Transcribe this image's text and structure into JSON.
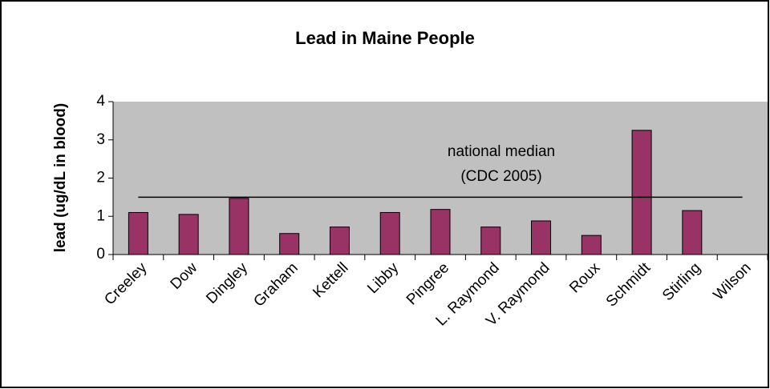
{
  "chart_data": {
    "type": "bar",
    "title": "Lead in Maine People",
    "y_label": "lead (ug/dL in blood)",
    "categories": [
      "Creeley",
      "Dow",
      "Dingley",
      "Graham",
      "Kettell",
      "Libby",
      "Pingree",
      "L. Raymond",
      "V. Raymond",
      "Roux",
      "Schmidt",
      "Stirling",
      "Wilson"
    ],
    "values": [
      1.1,
      1.05,
      1.47,
      0.55,
      0.72,
      1.1,
      1.18,
      0.72,
      0.88,
      0.5,
      3.25,
      1.15,
      null
    ],
    "color": "#993366",
    "ylim": [
      0,
      4
    ],
    "yticks": [
      0,
      1,
      2,
      3,
      4
    ],
    "reference_value": 1.5,
    "annotations": [
      "national median",
      "(CDC 2005)"
    ]
  }
}
